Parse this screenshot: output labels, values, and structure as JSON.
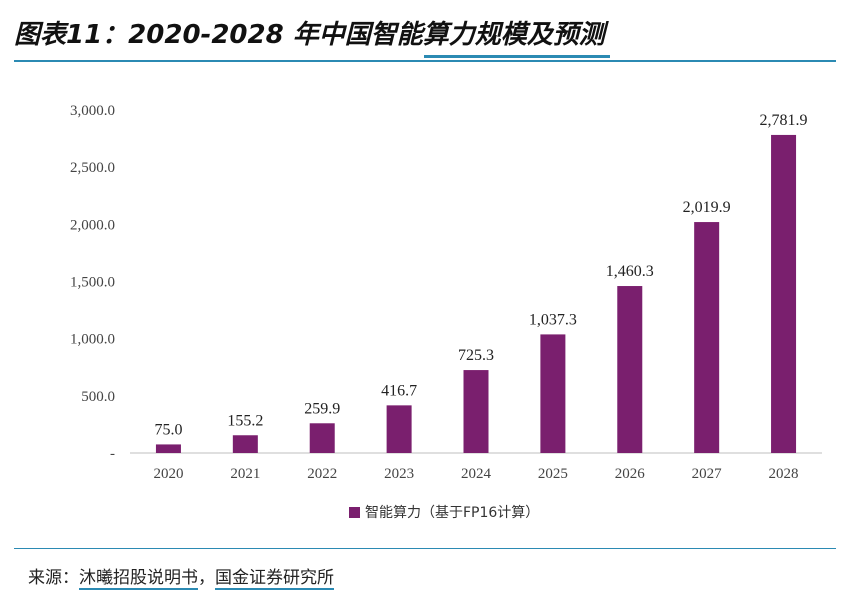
{
  "header": {
    "title": "图表11：2020-2028 年中国智能算力规模及预测"
  },
  "chart_data": {
    "type": "bar",
    "title": "图表11：2020-2028 年中国智能算力规模及预测",
    "categories": [
      "2020",
      "2021",
      "2022",
      "2023",
      "2024",
      "2025",
      "2026",
      "2027",
      "2028"
    ],
    "series": [
      {
        "name": "智能算力（基于FP16计算）",
        "values": [
          75.0,
          155.2,
          259.9,
          416.7,
          725.3,
          1037.3,
          1460.3,
          2019.9,
          2781.9
        ],
        "labels": [
          "75.0",
          "155.2",
          "259.9",
          "416.7",
          "725.3",
          "1,037.3",
          "1,460.3",
          "2,019.9",
          "2,781.9"
        ],
        "color": "#7a1f6e"
      }
    ],
    "y_ticks": [
      "-",
      "500.0",
      "1,000.0",
      "1,500.0",
      "2,000.0",
      "2,500.0",
      "3,000.0"
    ],
    "ylim": [
      0,
      3000
    ],
    "xlabel": "",
    "ylabel": "",
    "grid": false,
    "legend_position": "bottom"
  },
  "footer": {
    "source_prefix": "来源：",
    "source_a": "沐曦招股说明书",
    "separator": "，",
    "source_b": "国金证券研究所"
  },
  "colors": {
    "accent": "#2b8ab3",
    "bar": "#7a1f6e"
  }
}
